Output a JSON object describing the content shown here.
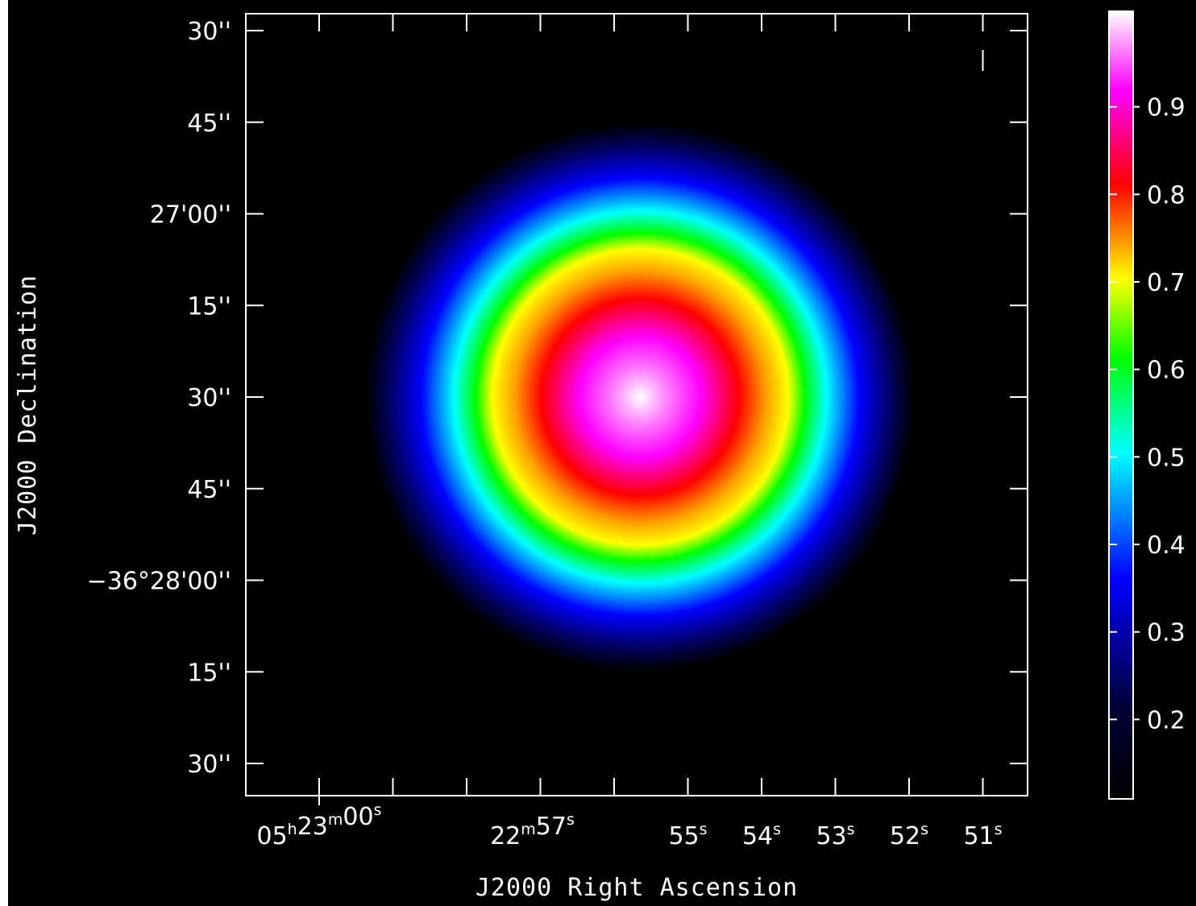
{
  "colors": {
    "background": "#000000",
    "axes": "#ffffff",
    "text": "#ffffff"
  },
  "chart_data": {
    "type": "heatmap",
    "title": "",
    "xlabel": "J2000 Right Ascension",
    "ylabel": "J2000 Declination",
    "colormap": "rainbow (black-blue-cyan-green-yellow-red-magenta-white)",
    "x_ticks": [
      {
        "label_parts": [
          [
            "05",
            "h"
          ],
          [
            "23",
            "m"
          ],
          [
            "00",
            "s"
          ]
        ],
        "seconds": 0
      },
      {
        "label_parts": [
          [
            "22",
            "m"
          ],
          [
            "57",
            "s"
          ]
        ],
        "seconds": 3
      },
      {
        "label_parts": [
          [
            "55",
            "s"
          ]
        ],
        "seconds": 5
      },
      {
        "label_parts": [
          [
            "54",
            "s"
          ]
        ],
        "seconds": 6
      },
      {
        "label_parts": [
          [
            "53",
            "s"
          ]
        ],
        "seconds": 7
      },
      {
        "label_parts": [
          [
            "52",
            "s"
          ]
        ],
        "seconds": 8
      },
      {
        "label_parts": [
          [
            "51",
            "s"
          ]
        ],
        "seconds": 9
      }
    ],
    "x_minor_ticks_seconds": [
      1,
      2,
      4
    ],
    "y_ticks": [
      {
        "label": "30''",
        "offset_arcsec": -120
      },
      {
        "label": "45''",
        "offset_arcsec": -105
      },
      {
        "label": "27'00''",
        "offset_arcsec": -90
      },
      {
        "label": "15''",
        "offset_arcsec": -75
      },
      {
        "label": "30''",
        "offset_arcsec": -60
      },
      {
        "label": "45''",
        "offset_arcsec": -45
      },
      {
        "label": "−36°28'00''",
        "offset_arcsec": -30
      },
      {
        "label": "15''",
        "offset_arcsec": -15
      },
      {
        "label": "30''",
        "offset_arcsec": 0
      }
    ],
    "source": {
      "ra_seconds": 4.3,
      "dec_offset_arcsec": -60,
      "fwhm_arcsec": 36,
      "peak": 1.0
    },
    "colorbar": {
      "range": [
        0.1,
        1.0
      ],
      "ticks": [
        {
          "value": 0.9,
          "label": "0.9"
        },
        {
          "value": 0.8,
          "label": "0.8"
        },
        {
          "value": 0.7,
          "label": "0.7"
        },
        {
          "value": 0.6,
          "label": "0.6"
        },
        {
          "value": 0.5,
          "label": "0.5"
        },
        {
          "value": 0.4,
          "label": "0.4"
        },
        {
          "value": 0.3,
          "label": "0.3"
        },
        {
          "value": 0.2,
          "label": "0.2"
        }
      ]
    }
  }
}
